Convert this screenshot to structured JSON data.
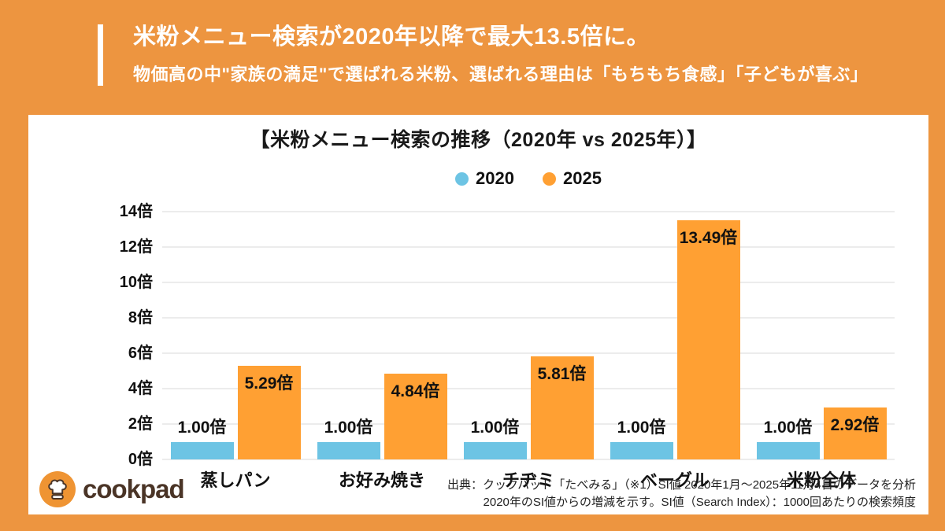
{
  "header": {
    "title": "米粉メニュー検索が2020年以降で最大13.5倍に。",
    "subtitle": "物価高の中\"家族の満足\"で選ばれる米粉、選ばれる理由は「もちもち食感」「子どもが喜ぶ」"
  },
  "chart": {
    "title": "【米粉メニュー検索の推移（2020年 vs 2025年）】"
  },
  "chart_data": {
    "type": "bar",
    "title": "【米粉メニュー検索の推移（2020年 vs 2025年）】",
    "categories": [
      "蒸しパン",
      "お好み焼き",
      "チヂミ",
      "ベーグル",
      "米粉全体"
    ],
    "series": [
      {
        "name": "2020",
        "color": "#6dc4e4",
        "values": [
          1.0,
          1.0,
          1.0,
          1.0,
          1.0
        ],
        "value_labels": [
          "1.00倍",
          "1.00倍",
          "1.00倍",
          "1.00倍",
          "1.00倍"
        ],
        "label_position": "above"
      },
      {
        "name": "2025",
        "color": "#ffa033",
        "values": [
          5.29,
          4.84,
          5.81,
          13.49,
          2.92
        ],
        "value_labels": [
          "5.29倍",
          "4.84倍",
          "5.81倍",
          "13.49倍",
          "2.92倍"
        ],
        "label_position": "inside"
      }
    ],
    "xlabel": "",
    "ylabel": "",
    "ylim": [
      0,
      14
    ],
    "ytick_step": 2,
    "yticks": [
      "0倍",
      "2倍",
      "4倍",
      "6倍",
      "8倍",
      "10倍",
      "12倍",
      "14倍"
    ],
    "grid": true,
    "legend_position": "top"
  },
  "footer": {
    "logo_text": "cookpad",
    "source_line1": "出典：クックパッド「たべみる」（※1）SI値 2020年1月～2025年11月4日のデータを分析",
    "source_line2": "2020年のSI値からの増減を示す。SI値（Search Index）：1000回あたりの検索頻度"
  },
  "colors": {
    "background": "#ed9540",
    "bar_2020": "#6dc4e4",
    "bar_2025": "#ffa033",
    "gridline": "#ececec",
    "header_text": "#ffffff",
    "logo_circle": "#ef9433",
    "logo_text": "#4a3426"
  }
}
